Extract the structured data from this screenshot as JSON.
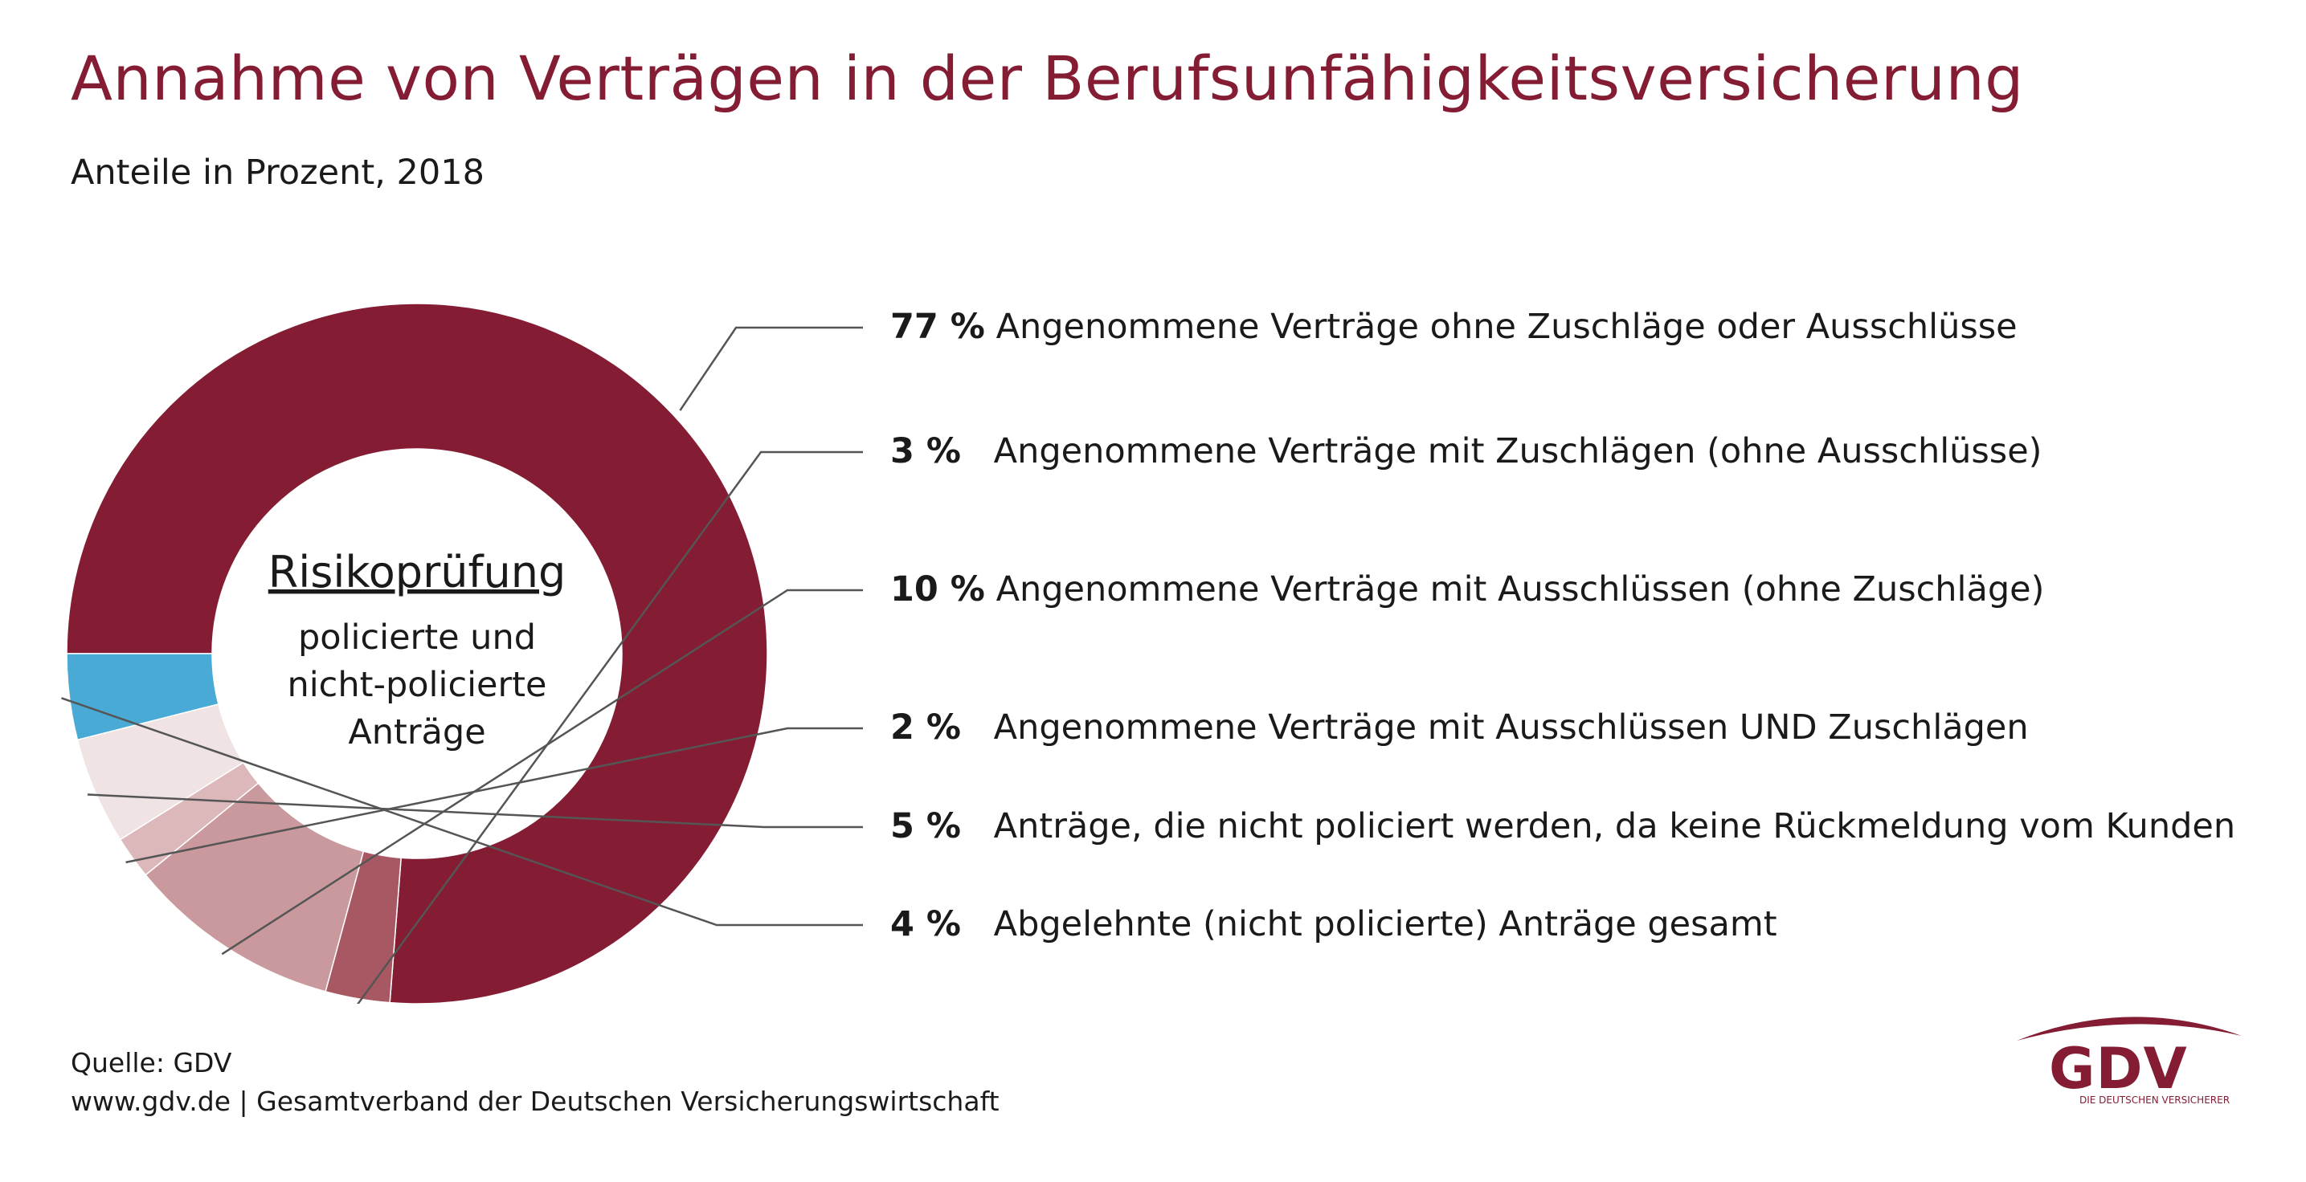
{
  "title": "Annahme von Verträgen in der Berufsunfähigkeitsversicherung",
  "subtitle": "Anteile in Prozent, 2018",
  "center": {
    "title": "Risikoprüfung",
    "lines": [
      "policierte und",
      "nicht-policierte",
      "Anträge"
    ]
  },
  "chart_data": {
    "type": "pie",
    "variant": "donut",
    "unit": "%",
    "start": "left",
    "direction": "clockwise",
    "legend_position": "right",
    "slices": [
      {
        "value": 77,
        "label": "77 %",
        "text": "Angenommene Verträge ohne Zuschläge oder Ausschlüsse",
        "color": "#841d33"
      },
      {
        "value": 3,
        "label": "3 %",
        "text": "Angenommene Verträge mit Zuschlägen (ohne Ausschlüsse)",
        "color": "#a85862"
      },
      {
        "value": 10,
        "label": "10 %",
        "text": "Angenommene Verträge mit Ausschlüssen (ohne Zuschläge)",
        "color": "#c9999d"
      },
      {
        "value": 2,
        "label": "2 %",
        "text": "Angenommene Verträge mit Ausschlüssen UND Zuschlägen",
        "color": "#ddb8bb"
      },
      {
        "value": 5,
        "label": "5 %",
        "text": "Anträge, die nicht policiert werden, da keine Rückmeldung vom Kunden",
        "color": "#efe3e4"
      },
      {
        "value": 4,
        "label": "4 %",
        "text": "Abgelehnte (nicht policierte) Anträge gesamt",
        "color": "#4aaad6"
      }
    ]
  },
  "footer": {
    "source": "Quelle: GDV",
    "website": "www.gdv.de",
    "separator": "|",
    "organisation": "Gesamtverband der Deutschen Versicherungswirtschaft"
  },
  "logo": {
    "text": "GDV",
    "tagline": "DIE DEUTSCHEN VERSICHERER"
  }
}
